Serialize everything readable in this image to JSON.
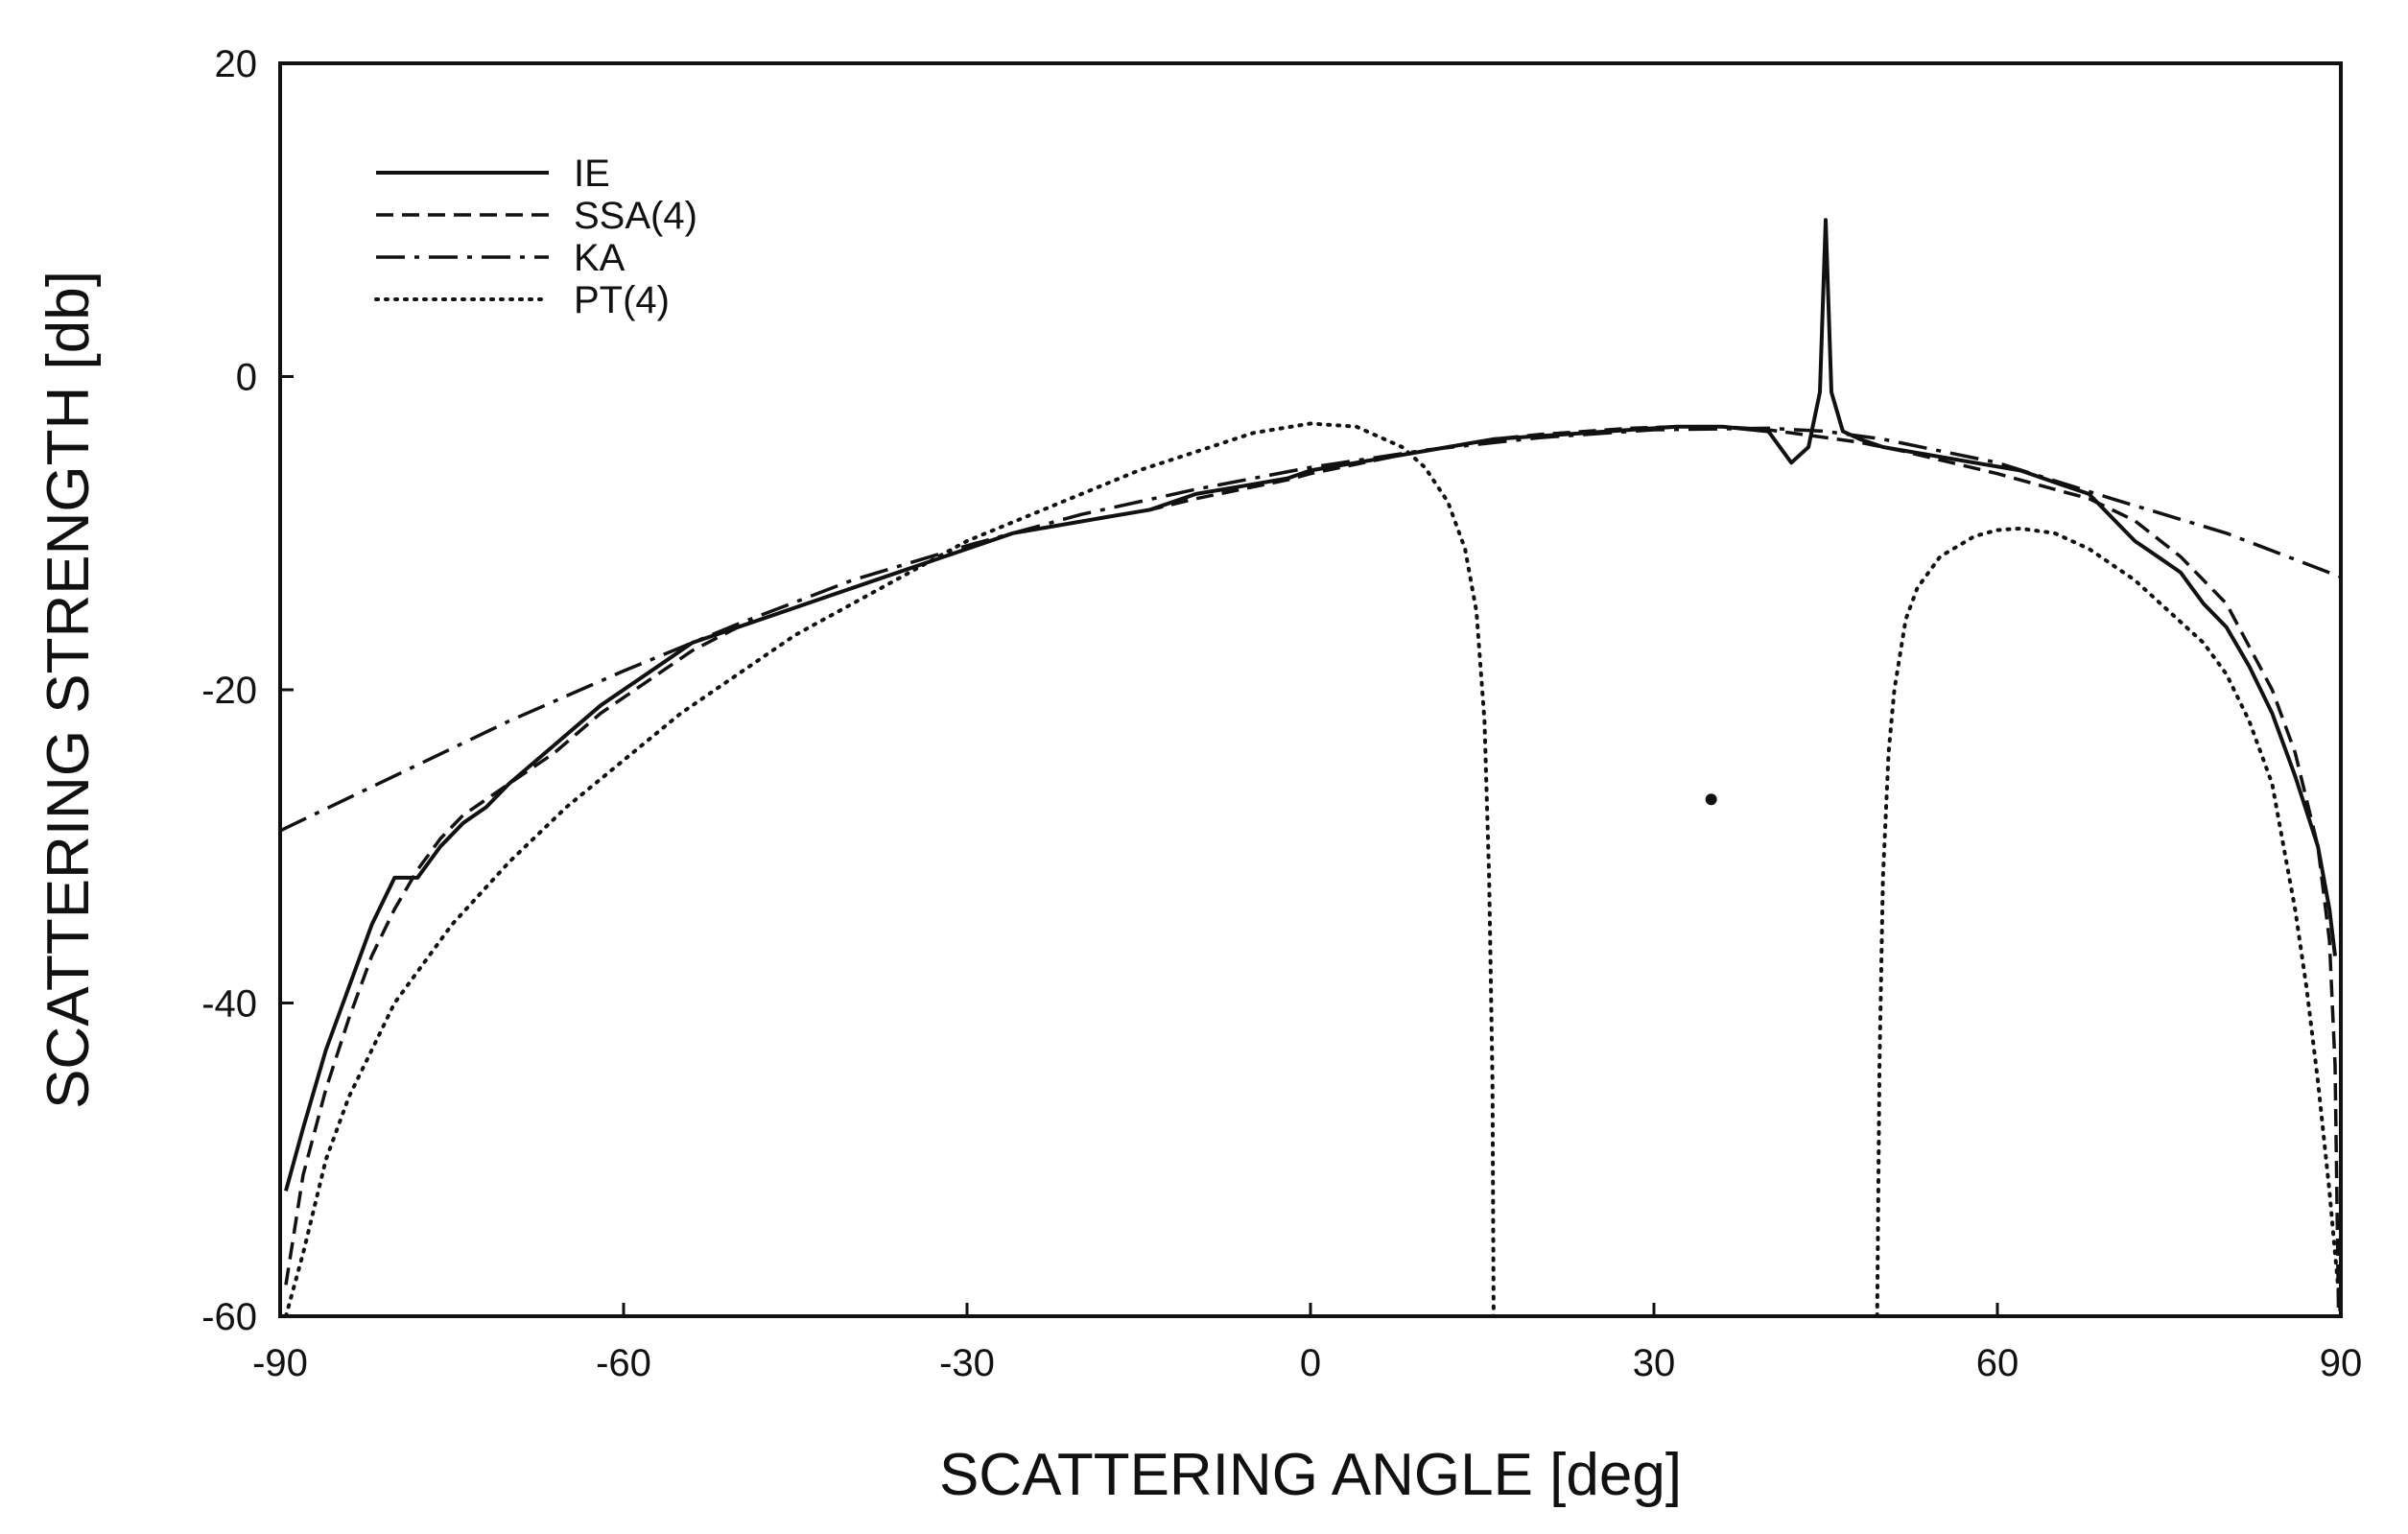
{
  "chart_data": {
    "type": "line",
    "xlabel": "SCATTERING ANGLE [deg]",
    "ylabel": "SCATTERING STRENGTH [db]",
    "xlim": [
      -90,
      90
    ],
    "ylim": [
      -60,
      20
    ],
    "xticks": [
      -90,
      -60,
      -30,
      0,
      30,
      60,
      90
    ],
    "yticks": [
      20,
      0,
      -20,
      -40,
      -60
    ],
    "grid": false,
    "legend_position": "top-left",
    "annotations": [
      {
        "x": 35,
        "y": -27,
        "kind": "dot"
      }
    ],
    "series": [
      {
        "name": "IE",
        "style": "solid",
        "x": [
          -89.5,
          -88,
          -86,
          -84,
          -82,
          -80,
          -78,
          -76,
          -74,
          -72,
          -70,
          -66,
          -62,
          -58,
          -54,
          -50,
          -46,
          -42,
          -38,
          -34,
          -30,
          -26,
          -22,
          -18,
          -14,
          -10,
          -6,
          -2,
          0,
          4,
          8,
          12,
          16,
          20,
          24,
          28,
          32,
          36,
          40,
          42,
          43.5,
          44.5,
          45,
          45.5,
          46.5,
          48,
          50,
          54,
          58,
          62,
          66,
          68,
          70,
          72,
          74,
          76,
          78,
          80,
          82,
          84,
          86,
          88,
          89,
          89.5
        ],
        "y": [
          -52,
          -48,
          -43,
          -39,
          -35,
          -32,
          -32,
          -30,
          -28.5,
          -27.5,
          -26,
          -23.5,
          -21,
          -19,
          -17,
          -16,
          -15,
          -14,
          -13,
          -12,
          -11,
          -10,
          -9.5,
          -9,
          -8.5,
          -7.5,
          -7,
          -6.5,
          -6,
          -5.5,
          -5,
          -4.5,
          -4,
          -3.8,
          -3.6,
          -3.4,
          -3.2,
          -3.2,
          -3.5,
          -5.5,
          -4.5,
          -1,
          10,
          -1,
          -3.5,
          -4,
          -4.5,
          -5,
          -5.5,
          -6,
          -7,
          -7.5,
          -9,
          -10.5,
          -11.5,
          -12.5,
          -14.5,
          -16,
          -18.5,
          -21.5,
          -25.5,
          -30,
          -34,
          -37
        ]
      },
      {
        "name": "SSA(4)",
        "style": "dashed",
        "x": [
          -89.5,
          -88,
          -86,
          -84,
          -82,
          -80,
          -78,
          -76,
          -74,
          -72,
          -70,
          -66,
          -62,
          -58,
          -54,
          -50,
          -46,
          -42,
          -38,
          -34,
          -30,
          -26,
          -22,
          -18,
          -14,
          -10,
          -6,
          -2,
          0,
          4,
          8,
          12,
          16,
          20,
          24,
          28,
          32,
          36,
          40,
          44,
          48,
          52,
          56,
          60,
          64,
          68,
          72,
          76,
          80,
          84,
          86,
          88,
          89,
          89.5,
          89.8
        ],
        "y": [
          -58,
          -51,
          -45.5,
          -41,
          -37,
          -34,
          -31.5,
          -29.5,
          -28,
          -27,
          -26,
          -24,
          -21.5,
          -19.5,
          -17.5,
          -16,
          -15,
          -14,
          -13,
          -12,
          -11,
          -10,
          -9.5,
          -9,
          -8.5,
          -7.8,
          -7.2,
          -6.6,
          -6.2,
          -5.6,
          -5,
          -4.5,
          -4,
          -3.7,
          -3.5,
          -3.3,
          -3.2,
          -3.2,
          -3.4,
          -3.8,
          -4.2,
          -4.8,
          -5.5,
          -6.2,
          -7,
          -7.8,
          -9.2,
          -11.5,
          -14.5,
          -20,
          -24,
          -30,
          -36,
          -44,
          -60
        ]
      },
      {
        "name": "KA",
        "style": "dashdot",
        "x": [
          -90,
          -80,
          -70,
          -60,
          -50,
          -40,
          -30,
          -20,
          -10,
          0,
          10,
          20,
          30,
          40,
          45,
          50,
          60,
          70,
          80,
          90
        ],
        "y": [
          -29,
          -25.5,
          -22,
          -18.8,
          -15.8,
          -13,
          -10.8,
          -8.8,
          -7.2,
          -5.8,
          -4.7,
          -3.9,
          -3.4,
          -3.3,
          -3.5,
          -4,
          -5.5,
          -7.8,
          -10,
          -12.8
        ]
      },
      {
        "name": "PT(4)",
        "style": "dotted",
        "segments": [
          {
            "x": [
              -89.5,
              -88,
              -86,
              -84,
              -82,
              -80,
              -75,
              -70,
              -65,
              -60,
              -55,
              -50,
              -45,
              -40,
              -35,
              -30,
              -25,
              -20,
              -15,
              -10,
              -5,
              0,
              4,
              8,
              10,
              12,
              13.5,
              14.5,
              15.2,
              15.6,
              15.9,
              16
            ],
            "y": [
              -60,
              -56,
              -50,
              -46,
              -43,
              -40,
              -35,
              -31,
              -27.5,
              -24.5,
              -21.5,
              -19,
              -16.5,
              -14.5,
              -12.5,
              -10.5,
              -9,
              -7.5,
              -6,
              -4.8,
              -3.6,
              -3,
              -3.2,
              -4.5,
              -5.8,
              -8,
              -11,
              -15,
              -22,
              -32,
              -45,
              -60
            ]
          },
          {
            "x": [
              49.5,
              49.7,
              50,
              50.5,
              51,
              52,
              53,
              55,
              58,
              60,
              62,
              65,
              68,
              70,
              72,
              75,
              78,
              80,
              82,
              84,
              85,
              86,
              87,
              88,
              89,
              89.5,
              90
            ],
            "y": [
              -60,
              -44,
              -32,
              -24,
              -20,
              -15.5,
              -13.5,
              -11.5,
              -10.2,
              -9.8,
              -9.7,
              -10,
              -11,
              -12,
              -13,
              -15,
              -17,
              -19,
              -22,
              -26,
              -30,
              -34,
              -39,
              -45,
              -52,
              -56,
              -60
            ]
          }
        ]
      }
    ]
  }
}
